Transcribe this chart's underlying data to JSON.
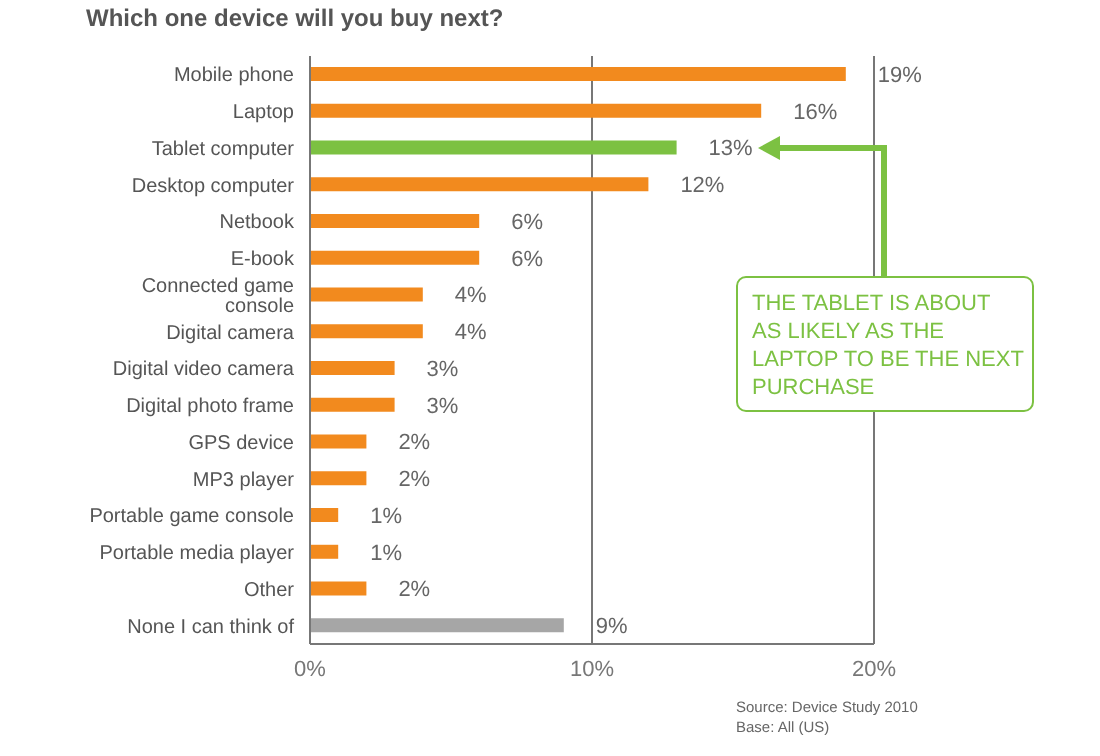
{
  "chart_data": {
    "type": "bar",
    "orientation": "horizontal",
    "title": "Which one device will you buy next?",
    "categories": [
      "Mobile phone",
      "Laptop",
      "Tablet computer",
      "Desktop computer",
      "Netbook",
      "E-book",
      "Connected game console",
      "Digital camera",
      "Digital video camera",
      "Digital photo frame",
      "GPS device",
      "MP3 player",
      "Portable game console",
      "Portable media player",
      "Other",
      "None I can think of"
    ],
    "values": [
      19,
      16,
      13,
      12,
      6,
      6,
      4,
      4,
      3,
      3,
      2,
      2,
      1,
      1,
      2,
      9
    ],
    "value_labels": [
      "19%",
      "16%",
      "13%",
      "12%",
      "6%",
      "6%",
      "4%",
      "4%",
      "3%",
      "3%",
      "2%",
      "2%",
      "1%",
      "1%",
      "2%",
      "9%"
    ],
    "colors": [
      "#f28a1e",
      "#f28a1e",
      "#7cc142",
      "#f28a1e",
      "#f28a1e",
      "#f28a1e",
      "#f28a1e",
      "#f28a1e",
      "#f28a1e",
      "#f28a1e",
      "#f28a1e",
      "#f28a1e",
      "#f28a1e",
      "#f28a1e",
      "#f28a1e",
      "#a6a6a6"
    ],
    "xlim": [
      0,
      20
    ],
    "xticks": [
      {
        "value": 0,
        "label": "0%"
      },
      {
        "value": 10,
        "label": "10%"
      },
      {
        "value": 20,
        "label": "20%"
      }
    ],
    "grid": "x",
    "annotations": [
      "THE TABLET IS ABOUT AS LIKELY AS THE LAPTOP TO BE THE NEXT PURCHASE",
      "Source: Device Study 2010",
      "Base: All (US)"
    ]
  }
}
